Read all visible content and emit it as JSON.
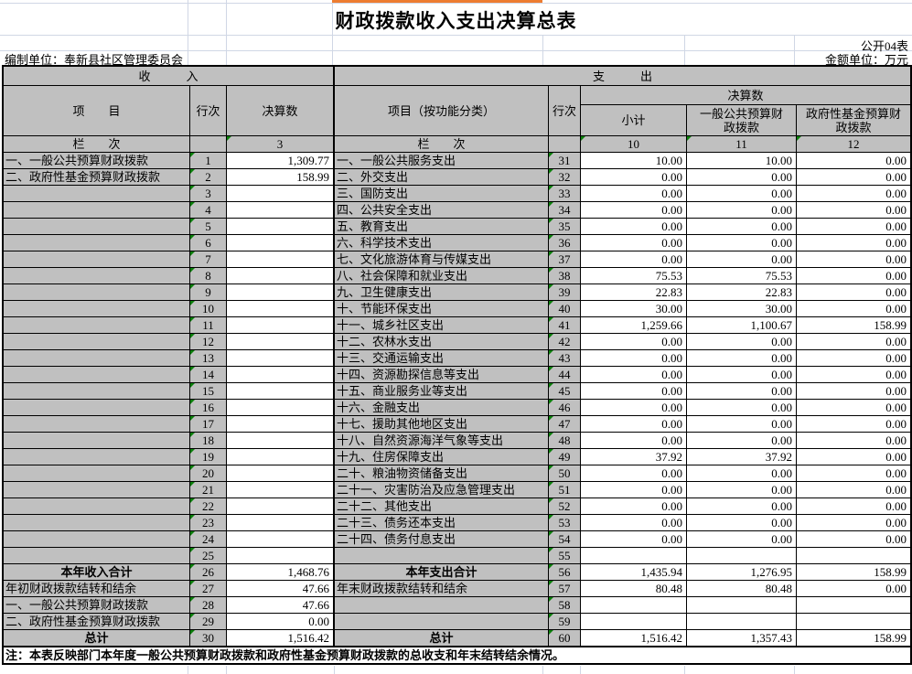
{
  "title": "财政拨款收入支出决算总表",
  "meta": {
    "sheet_label": "公开04表",
    "unit_label": "金额单位：万元",
    "prepared_by": "编制单位：奉新县社区管理委员会"
  },
  "header": {
    "income_section": "收　　　入",
    "expense_section": "支　　　出",
    "item": "项　　目",
    "line_no_income": "行次",
    "line_no_expense": "行次",
    "final_amount_income": "决算数",
    "final_amount_expense": "决算数",
    "expense_item": "项目（按功能分类）",
    "subtotal": "小计",
    "general_budget": "一般公共预算财政拨款",
    "gov_fund": "政府性基金预算财政拨款",
    "column_index_income": "栏　　次",
    "column_index_expense": "栏　　次",
    "income_col_index": "3",
    "subtotal_col_index": "10",
    "general_col_index": "11",
    "fund_col_index": "12"
  },
  "income_rows": [
    {
      "item": "一、一般公共预算财政拨款",
      "line": "1",
      "value": "1,309.77",
      "emphasis": false
    },
    {
      "item": "二、政府性基金预算财政拨款",
      "line": "2",
      "value": "158.99",
      "emphasis": false
    },
    {
      "item": "",
      "line": "3",
      "value": "",
      "emphasis": false
    },
    {
      "item": "",
      "line": "4",
      "value": "",
      "emphasis": false
    },
    {
      "item": "",
      "line": "5",
      "value": "",
      "emphasis": false
    },
    {
      "item": "",
      "line": "6",
      "value": "",
      "emphasis": false
    },
    {
      "item": "",
      "line": "7",
      "value": "",
      "emphasis": false
    },
    {
      "item": "",
      "line": "8",
      "value": "",
      "emphasis": false
    },
    {
      "item": "",
      "line": "9",
      "value": "",
      "emphasis": false
    },
    {
      "item": "",
      "line": "10",
      "value": "",
      "emphasis": false
    },
    {
      "item": "",
      "line": "11",
      "value": "",
      "emphasis": false
    },
    {
      "item": "",
      "line": "12",
      "value": "",
      "emphasis": false
    },
    {
      "item": "",
      "line": "13",
      "value": "",
      "emphasis": false
    },
    {
      "item": "",
      "line": "14",
      "value": "",
      "emphasis": false
    },
    {
      "item": "",
      "line": "15",
      "value": "",
      "emphasis": false
    },
    {
      "item": "",
      "line": "16",
      "value": "",
      "emphasis": false
    },
    {
      "item": "",
      "line": "17",
      "value": "",
      "emphasis": false
    },
    {
      "item": "",
      "line": "18",
      "value": "",
      "emphasis": false
    },
    {
      "item": "",
      "line": "19",
      "value": "",
      "emphasis": false
    },
    {
      "item": "",
      "line": "20",
      "value": "",
      "emphasis": false
    },
    {
      "item": "",
      "line": "21",
      "value": "",
      "emphasis": false
    },
    {
      "item": "",
      "line": "22",
      "value": "",
      "emphasis": false
    },
    {
      "item": "",
      "line": "23",
      "value": "",
      "emphasis": false
    },
    {
      "item": "",
      "line": "24",
      "value": "",
      "emphasis": false
    },
    {
      "item": "",
      "line": "25",
      "value": "",
      "emphasis": false
    },
    {
      "item": "本年收入合计",
      "line": "26",
      "value": "1,468.76",
      "emphasis": true
    },
    {
      "item": "年初财政拨款结转和结余",
      "line": "27",
      "value": "47.66",
      "emphasis": false
    },
    {
      "item": "一、一般公共预算财政拨款",
      "line": "28",
      "value": "47.66",
      "emphasis": false
    },
    {
      "item": "二、政府性基金预算财政拨款",
      "line": "29",
      "value": "0.00",
      "emphasis": false
    },
    {
      "item": "总计",
      "line": "30",
      "value": "1,516.42",
      "emphasis": true
    }
  ],
  "expense_rows": [
    {
      "item": "一、一般公共服务支出",
      "line": "31",
      "subtotal": "10.00",
      "general": "10.00",
      "fund": "0.00",
      "emphasis": false
    },
    {
      "item": "二、外交支出",
      "line": "32",
      "subtotal": "0.00",
      "general": "0.00",
      "fund": "0.00",
      "emphasis": false
    },
    {
      "item": "三、国防支出",
      "line": "33",
      "subtotal": "0.00",
      "general": "0.00",
      "fund": "0.00",
      "emphasis": false
    },
    {
      "item": "四、公共安全支出",
      "line": "34",
      "subtotal": "0.00",
      "general": "0.00",
      "fund": "0.00",
      "emphasis": false
    },
    {
      "item": "五、教育支出",
      "line": "35",
      "subtotal": "0.00",
      "general": "0.00",
      "fund": "0.00",
      "emphasis": false
    },
    {
      "item": "六、科学技术支出",
      "line": "36",
      "subtotal": "0.00",
      "general": "0.00",
      "fund": "0.00",
      "emphasis": false
    },
    {
      "item": "七、文化旅游体育与传媒支出",
      "line": "37",
      "subtotal": "0.00",
      "general": "0.00",
      "fund": "0.00",
      "emphasis": false
    },
    {
      "item": "八、社会保障和就业支出",
      "line": "38",
      "subtotal": "75.53",
      "general": "75.53",
      "fund": "0.00",
      "emphasis": false
    },
    {
      "item": "九、卫生健康支出",
      "line": "39",
      "subtotal": "22.83",
      "general": "22.83",
      "fund": "0.00",
      "emphasis": false
    },
    {
      "item": "十、节能环保支出",
      "line": "40",
      "subtotal": "30.00",
      "general": "30.00",
      "fund": "0.00",
      "emphasis": false
    },
    {
      "item": "十一、城乡社区支出",
      "line": "41",
      "subtotal": "1,259.66",
      "general": "1,100.67",
      "fund": "158.99",
      "emphasis": false
    },
    {
      "item": "十二、农林水支出",
      "line": "42",
      "subtotal": "0.00",
      "general": "0.00",
      "fund": "0.00",
      "emphasis": false
    },
    {
      "item": "十三、交通运输支出",
      "line": "43",
      "subtotal": "0.00",
      "general": "0.00",
      "fund": "0.00",
      "emphasis": false
    },
    {
      "item": "十四、资源勘探信息等支出",
      "line": "44",
      "subtotal": "0.00",
      "general": "0.00",
      "fund": "0.00",
      "emphasis": false
    },
    {
      "item": "十五、商业服务业等支出",
      "line": "45",
      "subtotal": "0.00",
      "general": "0.00",
      "fund": "0.00",
      "emphasis": false
    },
    {
      "item": "十六、金融支出",
      "line": "46",
      "subtotal": "0.00",
      "general": "0.00",
      "fund": "0.00",
      "emphasis": false
    },
    {
      "item": "十七、援助其他地区支出",
      "line": "47",
      "subtotal": "0.00",
      "general": "0.00",
      "fund": "0.00",
      "emphasis": false
    },
    {
      "item": "十八、自然资源海洋气象等支出",
      "line": "48",
      "subtotal": "0.00",
      "general": "0.00",
      "fund": "0.00",
      "emphasis": false
    },
    {
      "item": "十九、住房保障支出",
      "line": "49",
      "subtotal": "37.92",
      "general": "37.92",
      "fund": "0.00",
      "emphasis": false
    },
    {
      "item": "二十、粮油物资储备支出",
      "line": "50",
      "subtotal": "0.00",
      "general": "0.00",
      "fund": "0.00",
      "emphasis": false
    },
    {
      "item": "二十一、灾害防治及应急管理支出",
      "line": "51",
      "subtotal": "0.00",
      "general": "0.00",
      "fund": "0.00",
      "emphasis": false
    },
    {
      "item": "二十二、其他支出",
      "line": "52",
      "subtotal": "0.00",
      "general": "0.00",
      "fund": "0.00",
      "emphasis": false
    },
    {
      "item": "二十三、债务还本支出",
      "line": "53",
      "subtotal": "0.00",
      "general": "0.00",
      "fund": "0.00",
      "emphasis": false
    },
    {
      "item": "二十四、债务付息支出",
      "line": "54",
      "subtotal": "0.00",
      "general": "0.00",
      "fund": "0.00",
      "emphasis": false
    },
    {
      "item": "",
      "line": "55",
      "subtotal": "",
      "general": "",
      "fund": "",
      "emphasis": false
    },
    {
      "item": "本年支出合计",
      "line": "56",
      "subtotal": "1,435.94",
      "general": "1,276.95",
      "fund": "158.99",
      "emphasis": true
    },
    {
      "item": "年末财政拨款结转和结余",
      "line": "57",
      "subtotal": "80.48",
      "general": "80.48",
      "fund": "0.00",
      "emphasis": false
    },
    {
      "item": "",
      "line": "58",
      "subtotal": "",
      "general": "",
      "fund": "",
      "emphasis": false
    },
    {
      "item": "",
      "line": "59",
      "subtotal": "",
      "general": "",
      "fund": "",
      "emphasis": false
    },
    {
      "item": "总计",
      "line": "60",
      "subtotal": "1,516.42",
      "general": "1,357.43",
      "fund": "158.99",
      "emphasis": true
    }
  ],
  "note": "注：本表反映部门本年度一般公共预算财政拨款和政府性基金预算财政拨款的总收支和年末结转结余情况。",
  "colors": {
    "header_fill": "#c0c0c0",
    "table_border": "#000000",
    "accent_orange": "#ed7d31",
    "error_indicator_green": "#0b7f0b",
    "sheet_gridline": "#d0d7e5"
  }
}
